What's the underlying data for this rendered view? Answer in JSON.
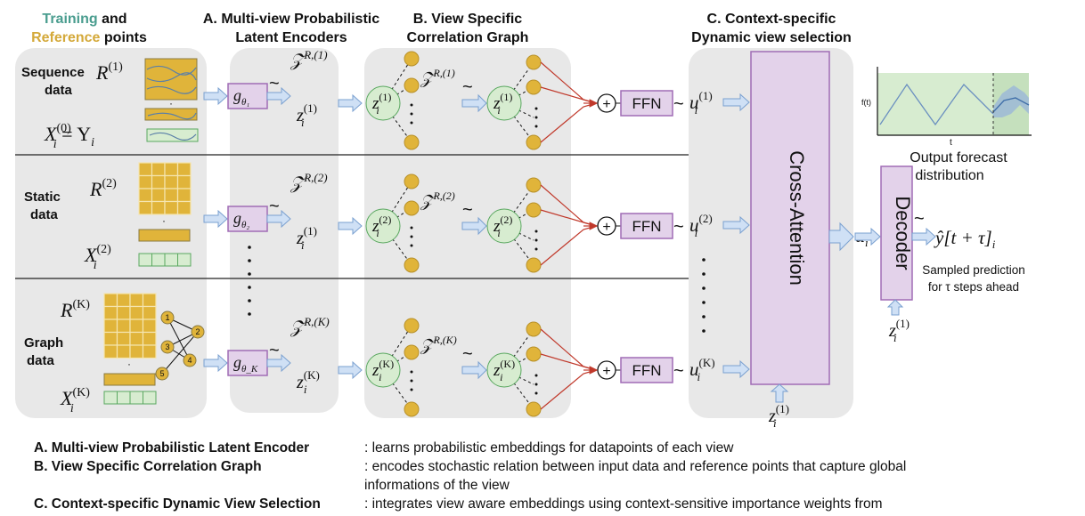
{
  "headers": {
    "training_word": "Training",
    "and_word": "and",
    "reference_word": "Reference",
    "points_word": "points",
    "enc_line1": "A. Multi-view Probabilistic",
    "enc_line2": "Latent Encoders",
    "graph_line1": "B. View Specific",
    "graph_line2": "Correlation Graph",
    "sel_line1": "C. Context-specific",
    "sel_line2": "Dynamic view selection"
  },
  "rows": [
    {
      "label1": "Sequence",
      "label2": "data",
      "ref": "R",
      "ref_sup": "(1)",
      "x": "X",
      "x_sup": "(0)",
      "x_sub": "i",
      "x_extra": " = Y",
      "x_extra_sub": "i",
      "enc_sub": "θ₁",
      "z_ref": "𝒵",
      "z_ref_sup": "R,(1)",
      "z": "z",
      "z_sup": "(1)",
      "z_sub": "i",
      "node_sup": "(1)",
      "u_sup": "(1)"
    },
    {
      "label1": "Static",
      "label2": "data",
      "ref": "R",
      "ref_sup": "(2)",
      "x": "X",
      "x_sup": "(2)",
      "x_sub": "i",
      "enc_sub": "θ₂",
      "z_ref": "𝒵",
      "z_ref_sup": "R,(2)",
      "z": "z",
      "z_sup": "(1)",
      "z_sub": "i",
      "node_sup": "(2)",
      "u_sup": "(2)"
    },
    {
      "label1": "Graph",
      "label2": "data",
      "ref": "R",
      "ref_sup": "(K)",
      "x": "X",
      "x_sup": "(K)",
      "x_sub": "i",
      "enc_sub": "θ_K",
      "z_ref": "𝒵",
      "z_ref_sup": "R,(K)",
      "z": "z",
      "z_sup": "(K)",
      "z_sub": "i",
      "node_sup": "(K)",
      "u_sup": "(K)"
    }
  ],
  "enc_letter": "g",
  "node_letter": "z",
  "node_sub": "i",
  "ffn_label": "FFN",
  "tilde": "~",
  "plus": "+",
  "u_letter": "u",
  "u_sub": "i",
  "cross_attention_label": "Cross-Attention",
  "decoder_label": "Decoder",
  "u_i_label": "u",
  "u_i_sub": "i",
  "bottom_z": "z",
  "bottom_z_sup": "(1)",
  "bottom_z_sub": "i",
  "prediction_label": "ŷ[t + τ]",
  "prediction_sub": "i",
  "sampled_line1": "Sampled prediction",
  "sampled_line2": "for τ steps ahead",
  "forecast": {
    "y_label": "f(t)",
    "x_label": "t",
    "caption_line1": "Output forecast",
    "caption_line2": "distribution"
  },
  "graph_nodes": [
    "1",
    "2",
    "3",
    "4",
    "5"
  ],
  "colors": {
    "training": "#4a9d8f",
    "reference": "#d4a93a",
    "panel": "#e8e8e8",
    "gold": "#e0b43a",
    "node_green": "#d7ecd0",
    "ffn_fill": "#e3d2ea",
    "ffn_stroke": "#a06cb5",
    "arrow_blue": "#cfe0f5",
    "red_line": "#c0392b"
  },
  "legend": [
    {
      "key": "A. Multi-view Probabilistic Latent Encoder",
      "value": ": learns probabilistic embeddings for datapoints of each view"
    },
    {
      "key": "B. View Specific Correlation Graph",
      "value": ": encodes stochastic relation between input data and reference points that capture global"
    },
    {
      "key": "",
      "value": "  informations of the view"
    },
    {
      "key": "C. Context-specific Dynamic View Selection",
      "value": ": integrates view aware embeddings using context-sensitive importance weights from"
    }
  ]
}
